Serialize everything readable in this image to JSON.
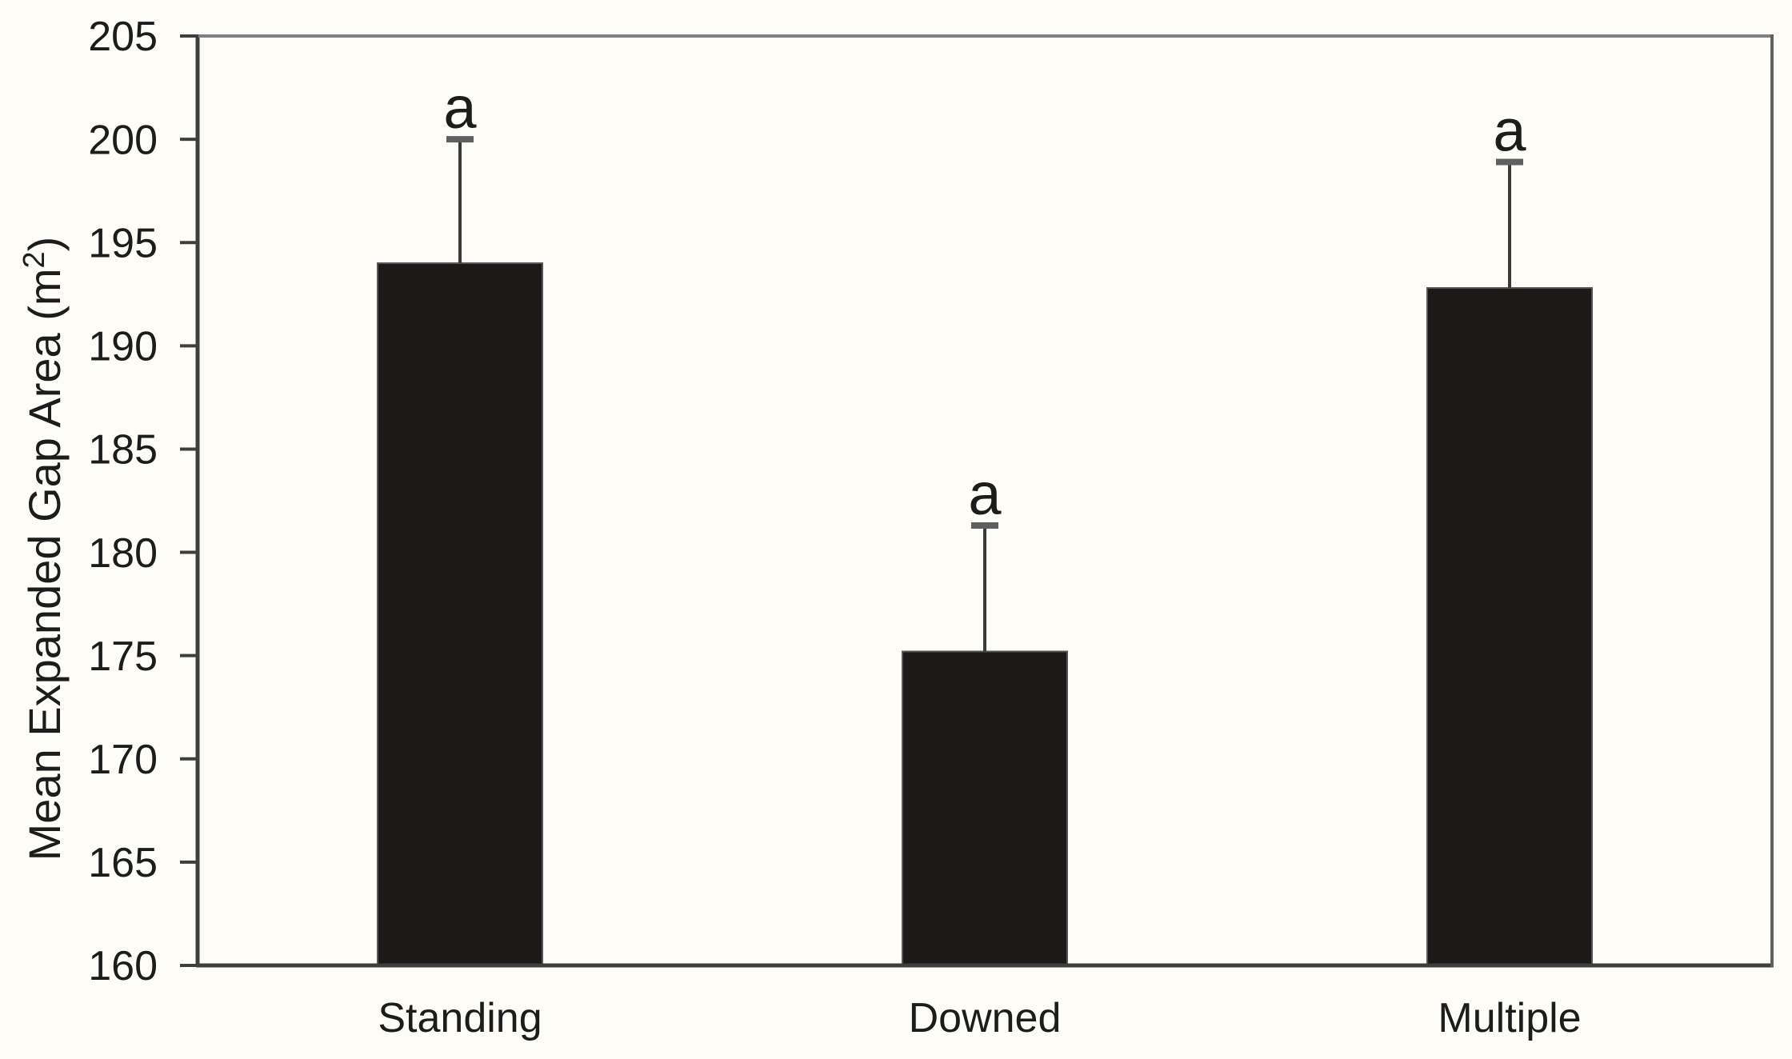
{
  "figure": {
    "background_color": "#fdfcf6",
    "text_color": "#1c1c1c",
    "bar_color": "#1b1a19",
    "axis_dark_color": "#3e3e3e",
    "axis_light_color": "#808080",
    "axis_right_color": "#606060",
    "error_whisker_color": "#3a3a3a",
    "error_cap_color": "#5f5f5f"
  },
  "chart_data": {
    "type": "bar",
    "title": "",
    "xlabel": "",
    "ylabel": "Mean Expanded Gap Area (m²)",
    "ylabel_parts": {
      "pre": "Mean Expanded Gap Area (m",
      "sup": "2",
      "post": ")"
    },
    "categories": [
      "Standing",
      "Downed",
      "Multiple"
    ],
    "values": [
      194.0,
      175.2,
      192.8
    ],
    "error_upper": [
      6.0,
      6.1,
      6.1
    ],
    "error_tops": [
      200.0,
      181.3,
      198.9
    ],
    "significance_labels": [
      "a",
      "a",
      "a"
    ],
    "ylim": [
      160,
      205
    ],
    "yticks": [
      160,
      165,
      170,
      175,
      180,
      185,
      190,
      195,
      200,
      205
    ],
    "ytick_labels": [
      "160",
      "165",
      "170",
      "175",
      "180",
      "185",
      "190",
      "195",
      "200",
      "205"
    ],
    "grid": false,
    "legend": null,
    "bar_fill": "#1b1a19",
    "error_bars": "upper-only"
  }
}
